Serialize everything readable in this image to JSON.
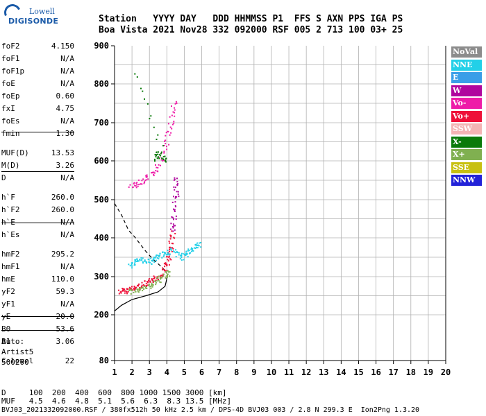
{
  "logo": {
    "line1": "Lowell",
    "line2": "DIGISONDE"
  },
  "header": {
    "row1": "Station   YYYY DAY   DDD HHMMSS P1  FFS S AXN PPS IGA PS",
    "row2": "Boa Vista 2021 Nov28 332 092000 RSF 005 2 713 100 03+ 25"
  },
  "params": [
    {
      "k": "foF2",
      "v": "4.150"
    },
    {
      "k": "foF1",
      "v": "N/A"
    },
    {
      "k": "foF1p",
      "v": "N/A"
    },
    {
      "k": "foE",
      "v": "N/A"
    },
    {
      "k": "foEp",
      "v": "0.60"
    },
    {
      "k": "fxI",
      "v": "4.75"
    },
    {
      "k": "foEs",
      "v": "N/A"
    },
    {
      "k": "fmin",
      "v": "1.30"
    },
    {
      "k": "MUF(D)",
      "v": "13.53"
    },
    {
      "k": "M(D)",
      "v": "3.26"
    },
    {
      "k": "D",
      "v": "N/A"
    },
    {
      "k": "h`F",
      "v": "260.0"
    },
    {
      "k": "h`F2",
      "v": "260.0"
    },
    {
      "k": "h`E",
      "v": "N/A"
    },
    {
      "k": "h`Es",
      "v": "N/A"
    },
    {
      "k": "hmF2",
      "v": "295.2"
    },
    {
      "k": "hmF1",
      "v": "N/A"
    },
    {
      "k": "hmE",
      "v": "110.0"
    },
    {
      "k": "yF2",
      "v": "59.3"
    },
    {
      "k": "yF1",
      "v": "N/A"
    },
    {
      "k": "yE",
      "v": "20.0"
    },
    {
      "k": "B0",
      "v": "53.6"
    },
    {
      "k": "B1",
      "v": "3.06"
    },
    {
      "k": "C-level",
      "v": "22"
    }
  ],
  "auto": {
    "line1": "Auto:",
    "line2": "Artist5",
    "line3": "500200"
  },
  "legend": [
    {
      "label": "NoVal",
      "color": "#8c8c8c"
    },
    {
      "label": "NNE",
      "color": "#22d0e8"
    },
    {
      "label": "E",
      "color": "#3a9ee8"
    },
    {
      "label": "W",
      "color": "#b0069e"
    },
    {
      "label": "Vo-",
      "color": "#ee1ca8"
    },
    {
      "label": "Vo+",
      "color": "#ee1038"
    },
    {
      "label": "SSW",
      "color": "#f4b4b4"
    },
    {
      "label": "X-",
      "color": "#0a7a0a"
    },
    {
      "label": "X+",
      "color": "#80b050"
    },
    {
      "label": "SSE",
      "color": "#c8c010"
    },
    {
      "label": "NNW",
      "color": "#2222d8"
    }
  ],
  "bottom": {
    "row1": "D     100  200  400  600  800 1000 1500 3000 [km]",
    "row2": "MUF   4.5  4.6  4.8  5.1  5.6  6.3  8.3 13.5 [MHz]",
    "row3": "BVJ03_2021332092000.RSF / 380fx512h 50 kHz 2.5 km / DPS-4D BVJ03 003 / 2.8 N 299.3 E  Ion2Png 1.3.20"
  },
  "chart_data": {
    "type": "scatter",
    "xlim": [
      1,
      20
    ],
    "ylim": [
      80,
      900
    ],
    "x_ticks": [
      1,
      2,
      3,
      4,
      5,
      6,
      7,
      8,
      9,
      10,
      11,
      12,
      13,
      14,
      15,
      16,
      17,
      18,
      19,
      20
    ],
    "y_ticks": [
      80,
      200,
      300,
      400,
      500,
      600,
      700,
      800,
      900
    ],
    "grid": true,
    "traces": [
      {
        "name": "Vo+",
        "color": "#ee1038",
        "points": [
          [
            1.3,
            262
          ],
          [
            1.6,
            265
          ],
          [
            2.0,
            270
          ],
          [
            2.4,
            276
          ],
          [
            2.8,
            283
          ],
          [
            3.2,
            292
          ],
          [
            3.6,
            305
          ],
          [
            3.9,
            325
          ],
          [
            4.1,
            350
          ],
          [
            4.2,
            380
          ],
          [
            4.3,
            420
          ]
        ]
      },
      {
        "name": "W",
        "color": "#b0069e",
        "points": [
          [
            4.3,
            420
          ],
          [
            4.4,
            460
          ],
          [
            4.5,
            520
          ],
          [
            4.55,
            560
          ]
        ]
      },
      {
        "name": "X+",
        "color": "#80b050",
        "points": [
          [
            1.9,
            263
          ],
          [
            2.4,
            267
          ],
          [
            2.9,
            275
          ],
          [
            3.4,
            288
          ],
          [
            3.8,
            300
          ],
          [
            4.1,
            315
          ]
        ]
      },
      {
        "name": "NNE",
        "color": "#22d0e8",
        "points": [
          [
            1.8,
            330
          ],
          [
            2.2,
            340
          ],
          [
            2.6,
            345
          ],
          [
            3.0,
            340
          ],
          [
            3.4,
            350
          ],
          [
            3.8,
            360
          ],
          [
            4.3,
            370
          ],
          [
            4.8,
            350
          ],
          [
            5.2,
            362
          ],
          [
            5.6,
            380
          ],
          [
            5.9,
            385
          ]
        ]
      },
      {
        "name": "Vo-",
        "color": "#ee1ca8",
        "points": [
          [
            1.9,
            535
          ],
          [
            2.4,
            545
          ],
          [
            2.9,
            560
          ],
          [
            3.4,
            580
          ],
          [
            3.9,
            640
          ],
          [
            4.2,
            700
          ],
          [
            4.4,
            760
          ]
        ]
      },
      {
        "name": "X-",
        "color": "#0a7a0a",
        "points": [
          [
            3.3,
            605
          ],
          [
            3.5,
            620
          ],
          [
            3.9,
            600
          ],
          [
            2.0,
            850
          ]
        ]
      }
    ],
    "curves": [
      {
        "name": "profile",
        "style": "solid",
        "points": [
          [
            1.0,
            210
          ],
          [
            1.4,
            225
          ],
          [
            2.0,
            240
          ],
          [
            2.8,
            250
          ],
          [
            3.5,
            260
          ],
          [
            3.9,
            275
          ],
          [
            4.0,
            295
          ],
          [
            4.05,
            305
          ]
        ]
      },
      {
        "name": "dashed",
        "style": "dashed",
        "points": [
          [
            1.0,
            490
          ],
          [
            1.4,
            460
          ],
          [
            1.8,
            420
          ],
          [
            2.2,
            400
          ],
          [
            2.7,
            370
          ],
          [
            3.2,
            345
          ],
          [
            3.7,
            325
          ],
          [
            4.0,
            310
          ]
        ]
      }
    ]
  }
}
